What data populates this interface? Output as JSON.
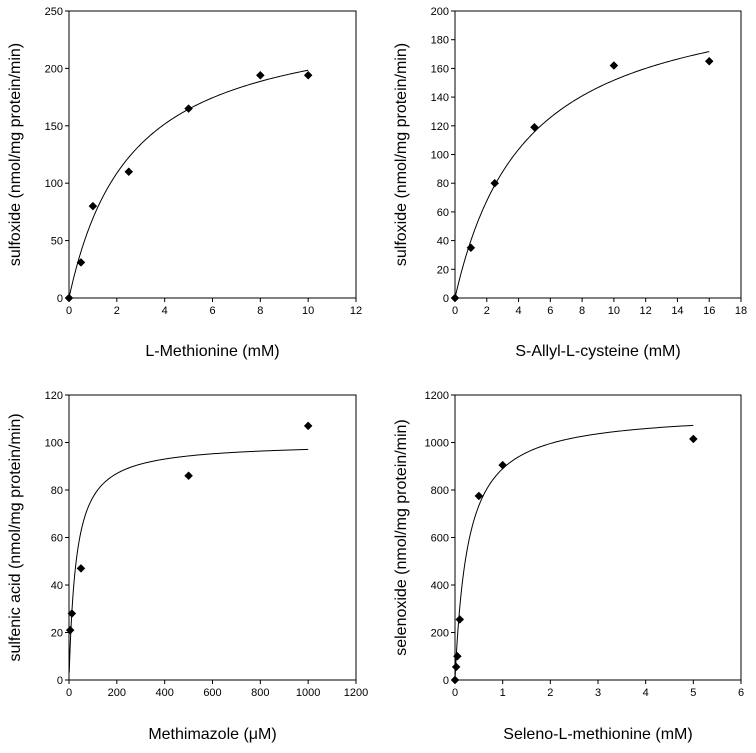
{
  "chart_data": [
    {
      "type": "scatter",
      "title": "",
      "xlabel": "L-Methionine (mM)",
      "ylabel": "sulfoxide (nmol/mg protein/min)",
      "xlim": [
        0,
        12
      ],
      "ylim": [
        0,
        250
      ],
      "xticks": [
        0,
        2,
        4,
        6,
        8,
        10,
        12
      ],
      "yticks": [
        0,
        50,
        100,
        150,
        200,
        250
      ],
      "grid": false,
      "legend": "none",
      "series": [
        {
          "marker": "diamond",
          "color": "#000000",
          "x": [
            0,
            0.5,
            1,
            2.5,
            5,
            8,
            10
          ],
          "y": [
            0,
            31,
            80,
            110,
            165,
            194,
            194
          ]
        }
      ],
      "fit_curve": {
        "model": "michaelis-menten",
        "vmax": 250,
        "km": 2.6,
        "x_range": [
          0,
          10
        ]
      }
    },
    {
      "type": "scatter",
      "title": "",
      "xlabel": "S-Allyl-L-cysteine (mM)",
      "ylabel": "sulfoxide (nmol/mg protein/min)",
      "xlim": [
        0,
        18
      ],
      "ylim": [
        0,
        200
      ],
      "xticks": [
        0,
        2,
        4,
        6,
        8,
        10,
        12,
        14,
        16,
        18
      ],
      "yticks": [
        0,
        20,
        40,
        60,
        80,
        100,
        120,
        140,
        160,
        180,
        200
      ],
      "grid": false,
      "legend": "none",
      "series": [
        {
          "marker": "diamond",
          "color": "#000000",
          "x": [
            0,
            1,
            2.5,
            5,
            10,
            16
          ],
          "y": [
            0,
            35,
            80,
            119,
            162,
            165
          ]
        }
      ],
      "fit_curve": {
        "model": "michaelis-menten",
        "vmax": 220,
        "km": 4.5,
        "x_range": [
          0,
          16
        ]
      }
    },
    {
      "type": "scatter",
      "title": "",
      "xlabel": "Methimazole (μM)",
      "ylabel": "sulfenic acid (nmol/mg protein/min)",
      "xlim": [
        0,
        1200
      ],
      "ylim": [
        0,
        120
      ],
      "xticks": [
        0,
        200,
        400,
        600,
        800,
        1000,
        1200
      ],
      "yticks": [
        0,
        20,
        40,
        60,
        80,
        100,
        120
      ],
      "grid": false,
      "legend": "none",
      "series": [
        {
          "marker": "diamond",
          "color": "#000000",
          "x": [
            5,
            12,
            50,
            500,
            1000
          ],
          "y": [
            21,
            28,
            47,
            86,
            107
          ]
        }
      ],
      "fit_curve": {
        "model": "michaelis-menten",
        "vmax": 100,
        "km": 30,
        "x_range": [
          1,
          1000
        ]
      }
    },
    {
      "type": "scatter",
      "title": "",
      "xlabel": "Seleno-L-methionine (mM)",
      "ylabel": "selenoxide (nmol/mg protein/min)",
      "xlim": [
        0,
        6
      ],
      "ylim": [
        0,
        1200
      ],
      "xticks": [
        0,
        1,
        2,
        3,
        4,
        5,
        6
      ],
      "yticks": [
        0,
        200,
        400,
        600,
        800,
        1000,
        1200
      ],
      "grid": false,
      "legend": "none",
      "series": [
        {
          "marker": "diamond",
          "color": "#000000",
          "x": [
            0,
            0.025,
            0.05,
            0.1,
            0.5,
            1,
            5
          ],
          "y": [
            0,
            55,
            100,
            255,
            775,
            905,
            1015
          ]
        }
      ],
      "fit_curve": {
        "model": "michaelis-menten",
        "vmax": 1130,
        "km": 0.27,
        "x_range": [
          0.003,
          5
        ]
      }
    }
  ]
}
